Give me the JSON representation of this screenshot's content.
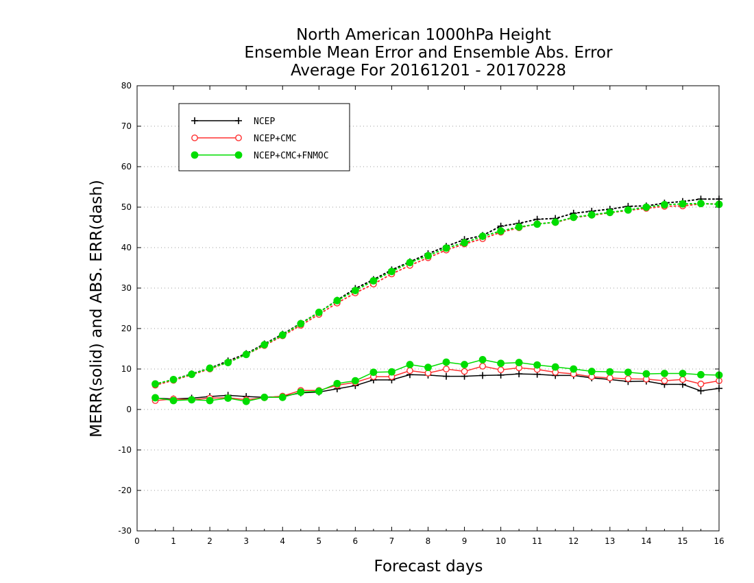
{
  "chart_data": {
    "type": "line",
    "title": [
      "North American 1000hPa Height",
      "Ensemble Mean Error and Ensemble Abs. Error",
      "Average For 20161201 - 20170228"
    ],
    "xlabel": "Forecast days",
    "ylabel": "MERR(solid) and ABS. ERR(dash)",
    "xlim": [
      0,
      16
    ],
    "ylim": [
      -30,
      80
    ],
    "xticks": [
      0,
      1,
      2,
      3,
      4,
      5,
      6,
      7,
      8,
      9,
      10,
      11,
      12,
      13,
      14,
      15,
      16
    ],
    "yticks": [
      -30,
      -20,
      -10,
      0,
      10,
      20,
      30,
      40,
      50,
      60,
      70,
      80
    ],
    "grid": "horizontal-dotted",
    "legend": {
      "placement": "top-left",
      "entries": [
        "NCEP",
        "NCEP+CMC",
        "NCEP+CMC+FNMOC"
      ]
    },
    "x": [
      0.5,
      1.0,
      1.5,
      2.0,
      2.5,
      3.0,
      3.5,
      4.0,
      4.5,
      5.0,
      5.5,
      6.0,
      6.5,
      7.0,
      7.5,
      8.0,
      8.5,
      9.0,
      9.5,
      10.0,
      10.5,
      11.0,
      11.5,
      12.0,
      12.5,
      13.0,
      13.5,
      14.0,
      14.5,
      15.0,
      15.5,
      16.0
    ],
    "series": [
      {
        "name": "NCEP",
        "color": "#000000",
        "marker": "plus",
        "merr": [
          2.8,
          2.6,
          2.8,
          3.2,
          3.5,
          3.2,
          3.0,
          3.2,
          4.1,
          4.3,
          5.1,
          5.9,
          7.3,
          7.3,
          8.6,
          8.5,
          8.2,
          8.2,
          8.4,
          8.5,
          8.8,
          8.7,
          8.4,
          8.4,
          7.8,
          7.4,
          6.9,
          7.0,
          6.2,
          6.2,
          4.6,
          5.2
        ],
        "abs_err": [
          6.2,
          7.4,
          8.8,
          10.2,
          12.0,
          13.8,
          16.2,
          18.6,
          21.3,
          24.0,
          27.0,
          29.9,
          32.1,
          34.5,
          36.5,
          38.5,
          40.3,
          42.0,
          43.0,
          45.3,
          46.0,
          47.0,
          47.2,
          48.5,
          49.0,
          49.5,
          50.2,
          50.3,
          51.0,
          51.4,
          52.0,
          52.0
        ]
      },
      {
        "name": "NCEP+CMC",
        "color": "#ff3030",
        "marker": "open-circle",
        "merr": [
          2.2,
          2.6,
          2.4,
          2.8,
          2.9,
          2.4,
          2.9,
          3.3,
          4.7,
          4.7,
          6.0,
          6.7,
          8.1,
          8.1,
          9.6,
          9.0,
          10.0,
          9.4,
          10.7,
          9.8,
          10.3,
          9.9,
          9.2,
          8.8,
          8.1,
          7.8,
          7.6,
          7.5,
          7.1,
          7.4,
          6.3,
          7.1
        ],
        "abs_err": [
          6.0,
          7.2,
          8.6,
          10.0,
          11.7,
          13.6,
          15.8,
          18.2,
          20.8,
          23.5,
          26.3,
          28.8,
          31.0,
          33.5,
          35.6,
          37.5,
          39.4,
          40.9,
          42.2,
          43.8,
          44.9,
          45.9,
          46.2,
          47.4,
          48.0,
          48.6,
          49.2,
          49.7,
          50.2,
          50.3,
          50.8,
          50.8
        ]
      },
      {
        "name": "NCEP+CMC+FNMOC",
        "color": "#00dd00",
        "marker": "filled-circle",
        "merr": [
          2.9,
          2.2,
          2.4,
          2.2,
          2.8,
          2.0,
          3.0,
          3.0,
          4.3,
          4.5,
          6.4,
          7.1,
          9.2,
          9.3,
          11.1,
          10.4,
          11.7,
          11.1,
          12.3,
          11.4,
          11.6,
          11.0,
          10.5,
          10.0,
          9.4,
          9.3,
          9.2,
          8.8,
          8.9,
          8.9,
          8.6,
          8.5
        ],
        "abs_err": [
          6.3,
          7.4,
          8.7,
          10.2,
          11.6,
          13.6,
          16.0,
          18.4,
          21.2,
          24.0,
          26.9,
          29.4,
          31.8,
          34.1,
          36.3,
          38.0,
          39.9,
          41.2,
          42.8,
          44.1,
          45.1,
          45.8,
          46.3,
          47.5,
          48.1,
          48.7,
          49.3,
          50.0,
          50.6,
          50.8,
          50.9,
          50.7
        ]
      }
    ]
  }
}
